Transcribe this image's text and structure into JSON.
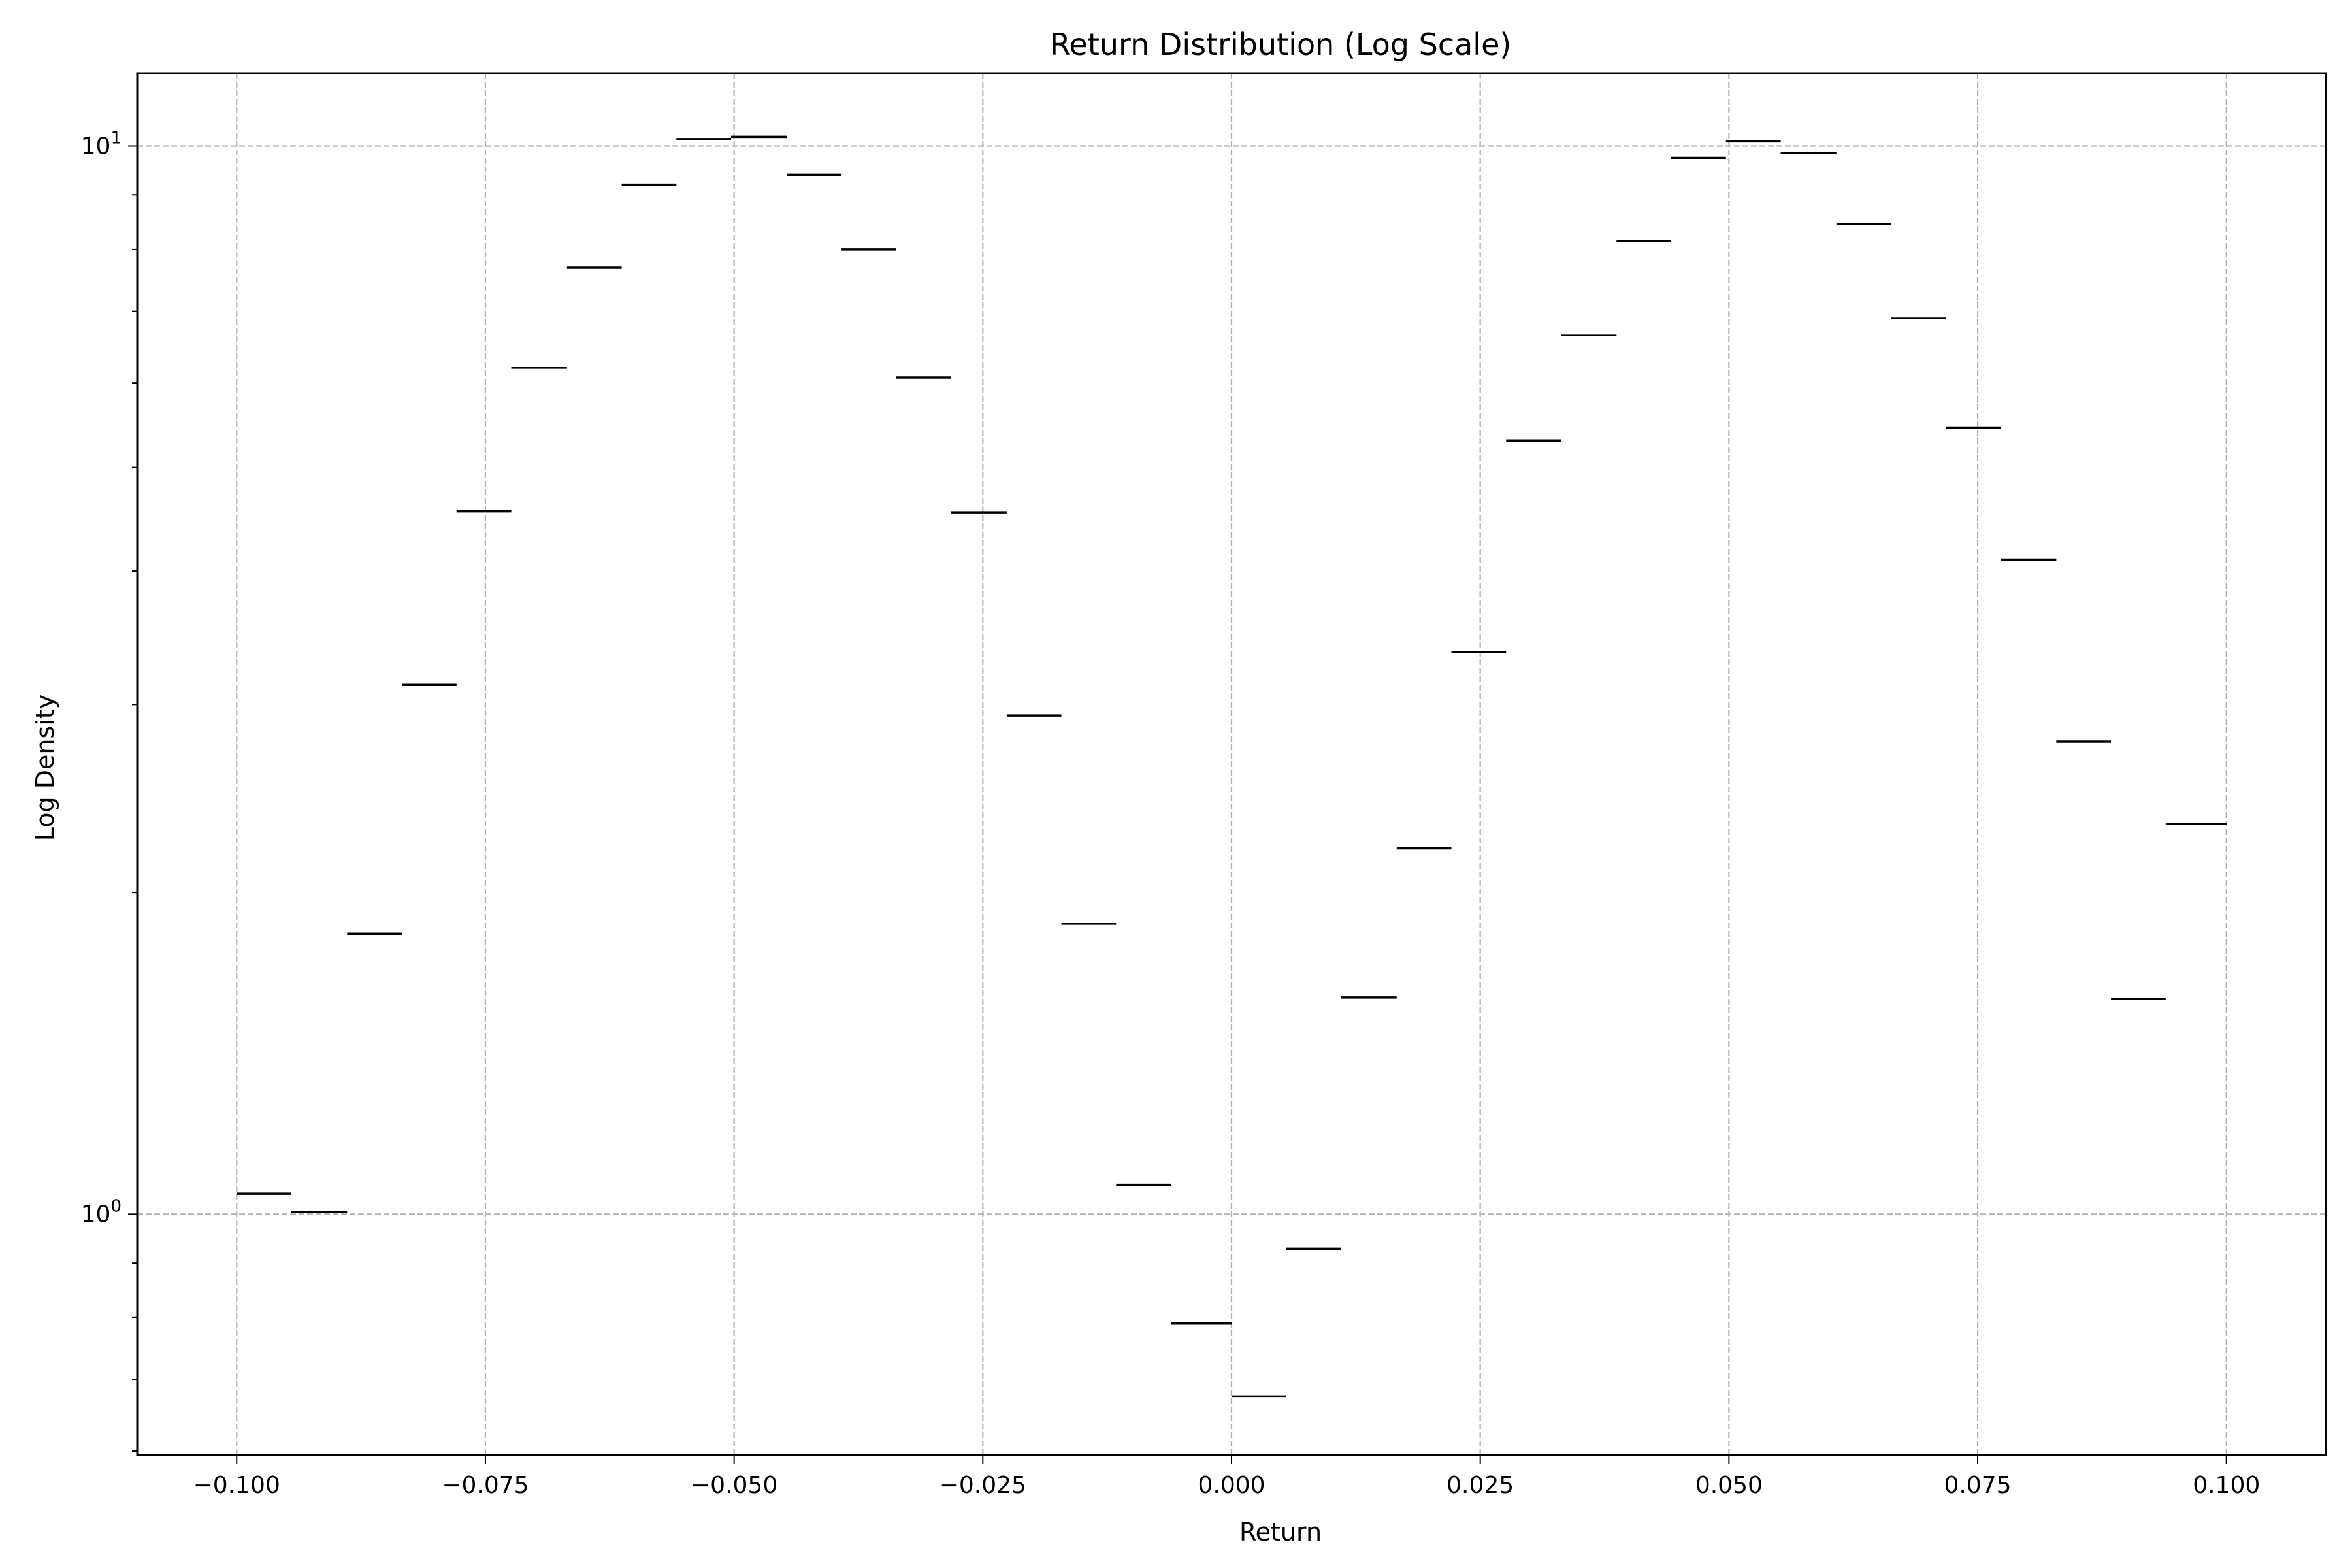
{
  "chart_data": {
    "type": "histogram-step",
    "title": "Return Distribution (Log Scale)",
    "xlabel": "Return",
    "ylabel": "Log Density",
    "yscale": "log",
    "xlim": [
      -0.11,
      0.11
    ],
    "ylim": [
      0.595,
      11.7
    ],
    "grid": true,
    "x_ticks": [
      {
        "value": -0.1,
        "label": "−0.100"
      },
      {
        "value": -0.075,
        "label": "−0.075"
      },
      {
        "value": -0.05,
        "label": "−0.050"
      },
      {
        "value": -0.025,
        "label": "−0.025"
      },
      {
        "value": 0.0,
        "label": "0.000"
      },
      {
        "value": 0.025,
        "label": "0.025"
      },
      {
        "value": 0.05,
        "label": "0.050"
      },
      {
        "value": 0.075,
        "label": "0.075"
      },
      {
        "value": 0.1,
        "label": "0.100"
      }
    ],
    "y_major_ticks": [
      {
        "value": 1,
        "base": "10",
        "exp": "0"
      },
      {
        "value": 10,
        "base": "10",
        "exp": "1"
      }
    ],
    "y_minor_ticks": [
      0.6,
      0.7,
      0.8,
      0.9,
      2,
      3,
      4,
      5,
      6,
      7,
      8,
      9
    ],
    "bins": [
      {
        "x0": -0.1,
        "x1": -0.0945,
        "y": 1.045
      },
      {
        "x0": -0.0945,
        "x1": -0.0889,
        "y": 1.005
      },
      {
        "x0": -0.0889,
        "x1": -0.0834,
        "y": 1.83
      },
      {
        "x0": -0.0834,
        "x1": -0.0779,
        "y": 3.13
      },
      {
        "x0": -0.0779,
        "x1": -0.0724,
        "y": 4.55
      },
      {
        "x0": -0.0724,
        "x1": -0.0668,
        "y": 6.2
      },
      {
        "x0": -0.0668,
        "x1": -0.0613,
        "y": 7.7
      },
      {
        "x0": -0.0613,
        "x1": -0.0558,
        "y": 9.2
      },
      {
        "x0": -0.0558,
        "x1": -0.0503,
        "y": 10.15
      },
      {
        "x0": -0.0503,
        "x1": -0.0447,
        "y": 10.2
      },
      {
        "x0": -0.0447,
        "x1": -0.0392,
        "y": 9.4
      },
      {
        "x0": -0.0392,
        "x1": -0.0337,
        "y": 8.0
      },
      {
        "x0": -0.0337,
        "x1": -0.0282,
        "y": 6.07
      },
      {
        "x0": -0.0282,
        "x1": -0.0226,
        "y": 4.54
      },
      {
        "x0": -0.0226,
        "x1": -0.0171,
        "y": 2.93
      },
      {
        "x0": -0.0171,
        "x1": -0.0116,
        "y": 1.87
      },
      {
        "x0": -0.0116,
        "x1": -0.0061,
        "y": 1.065
      },
      {
        "x0": -0.0061,
        "x1": 0.0,
        "y": 0.79
      },
      {
        "x0": 0.0,
        "x1": 0.0055,
        "y": 0.675
      },
      {
        "x0": 0.0055,
        "x1": 0.011,
        "y": 0.928
      },
      {
        "x0": 0.011,
        "x1": 0.0166,
        "y": 1.595
      },
      {
        "x0": 0.0166,
        "x1": 0.0221,
        "y": 2.2
      },
      {
        "x0": 0.0221,
        "x1": 0.0276,
        "y": 3.36
      },
      {
        "x0": 0.0276,
        "x1": 0.0331,
        "y": 5.3
      },
      {
        "x0": 0.0331,
        "x1": 0.0387,
        "y": 6.65
      },
      {
        "x0": 0.0387,
        "x1": 0.0442,
        "y": 8.15
      },
      {
        "x0": 0.0442,
        "x1": 0.0497,
        "y": 9.75
      },
      {
        "x0": 0.0497,
        "x1": 0.0552,
        "y": 10.1
      },
      {
        "x0": 0.0552,
        "x1": 0.0608,
        "y": 9.85
      },
      {
        "x0": 0.0608,
        "x1": 0.0663,
        "y": 8.45
      },
      {
        "x0": 0.0663,
        "x1": 0.0718,
        "y": 6.9
      },
      {
        "x0": 0.0718,
        "x1": 0.0773,
        "y": 5.45
      },
      {
        "x0": 0.0773,
        "x1": 0.0829,
        "y": 4.1
      },
      {
        "x0": 0.0829,
        "x1": 0.0884,
        "y": 2.77
      },
      {
        "x0": 0.0884,
        "x1": 0.0939,
        "y": 1.59
      },
      {
        "x0": 0.0939,
        "x1": 0.1,
        "y": 2.32
      }
    ]
  }
}
